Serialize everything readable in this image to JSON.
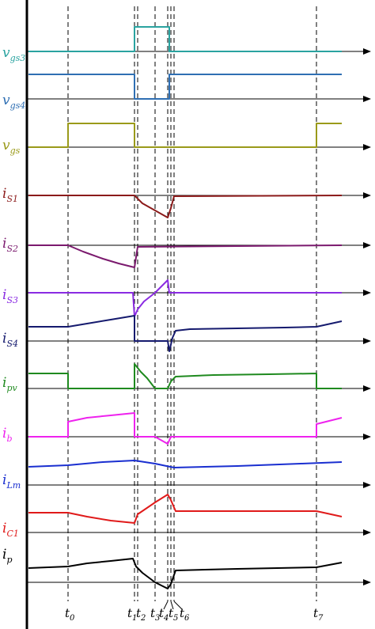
{
  "title": "",
  "signals": [
    {
      "key": "vgs3",
      "base": "v",
      "sub": "gs3",
      "color": "#2aa3a0"
    },
    {
      "key": "vgs4",
      "base": "v",
      "sub": "gs4",
      "color": "#2f6fb3"
    },
    {
      "key": "vgs",
      "base": "v",
      "sub": "gs",
      "color": "#9a9a1a"
    },
    {
      "key": "iS1",
      "base": "i",
      "sub": "S1",
      "color": "#8b1a1a"
    },
    {
      "key": "iS2",
      "base": "i",
      "sub": "S2",
      "color": "#7b1a6e"
    },
    {
      "key": "iS3",
      "base": "i",
      "sub": "S3",
      "color": "#8a2be2"
    },
    {
      "key": "iS4",
      "base": "i",
      "sub": "S4",
      "color": "#151a6e"
    },
    {
      "key": "ipv",
      "base": "i",
      "sub": "pv",
      "color": "#1f8a1f"
    },
    {
      "key": "ib",
      "base": "i",
      "sub": "b",
      "color": "#ee22ee"
    },
    {
      "key": "iLm",
      "base": "i",
      "sub": "Lm",
      "color": "#1a2fd0"
    },
    {
      "key": "iC1",
      "base": "i",
      "sub": "C1",
      "color": "#e01a1a"
    },
    {
      "key": "ip",
      "base": "i",
      "sub": "p",
      "color": "#000000"
    }
  ],
  "time_marks": [
    {
      "key": "t0",
      "base": "t",
      "sub": "0"
    },
    {
      "key": "t1",
      "base": "t",
      "sub": "1"
    },
    {
      "key": "t2",
      "base": "t",
      "sub": "2"
    },
    {
      "key": "t3",
      "base": "t",
      "sub": "3"
    },
    {
      "key": "t4",
      "base": "t",
      "sub": "4"
    },
    {
      "key": "t5",
      "base": "t",
      "sub": "5"
    },
    {
      "key": "t6",
      "base": "t",
      "sub": "6"
    },
    {
      "key": "t7",
      "base": "t",
      "sub": "7"
    }
  ]
}
